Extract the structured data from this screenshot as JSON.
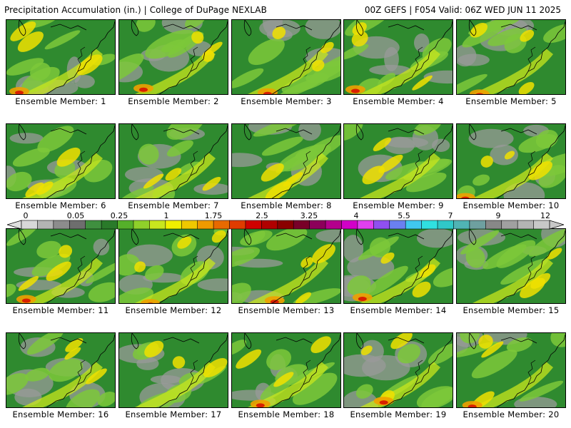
{
  "header": {
    "title_left": "Precipitation Accumulation (in.) | College of DuPage NEXLAB",
    "title_right": "00Z GEFS | F054 Valid: 06Z WED JUN 11 2025"
  },
  "members": [
    "Ensemble Member: 1",
    "Ensemble Member: 2",
    "Ensemble Member: 3",
    "Ensemble Member: 4",
    "Ensemble Member: 5",
    "Ensemble Member: 6",
    "Ensemble Member: 7",
    "Ensemble Member: 8",
    "Ensemble Member: 9",
    "Ensemble Member: 10",
    "Ensemble Member: 11",
    "Ensemble Member: 12",
    "Ensemble Member: 13",
    "Ensemble Member: 14",
    "Ensemble Member: 15",
    "Ensemble Member: 16",
    "Ensemble Member: 17",
    "Ensemble Member: 18",
    "Ensemble Member: 19",
    "Ensemble Member: 20"
  ],
  "colorbar": {
    "labels": [
      "0",
      "0.05",
      "0.25",
      "1",
      "1.75",
      "2.5",
      "3.25",
      "4",
      "5.5",
      "7",
      "9",
      "12"
    ],
    "colors": [
      "#d8d8d8",
      "#b4b4b4",
      "#8c8c8c",
      "#6e6e6e",
      "#3f8f3f",
      "#2a7a2a",
      "#55b02a",
      "#8fd02a",
      "#c8e61e",
      "#f0f000",
      "#f0c800",
      "#f09a00",
      "#e86a00",
      "#e03c00",
      "#d00000",
      "#b00000",
      "#8a0000",
      "#780028",
      "#8c005a",
      "#b4008c",
      "#d200c8",
      "#e040f0",
      "#9050f0",
      "#6a80f0",
      "#40c8f0",
      "#30e0e0",
      "#30c8c8",
      "#50b4b4",
      "#6ea0a0",
      "#888888",
      "#a0a0a0",
      "#b4b4b4",
      "#c8c8c8"
    ]
  },
  "icons": {
    "colorbar_left": "triangle-left-icon",
    "colorbar_right": "triangle-right-icon"
  }
}
